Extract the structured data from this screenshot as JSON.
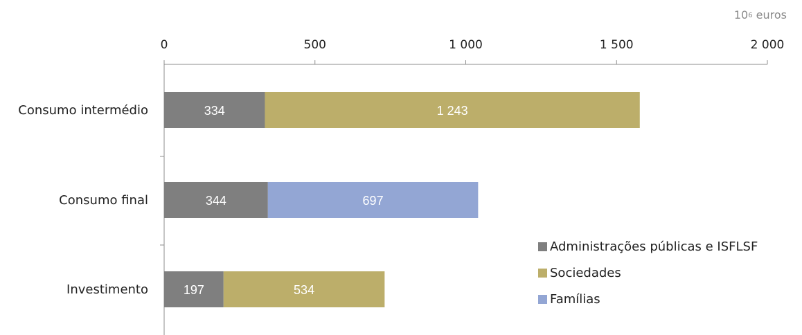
{
  "chart_data": {
    "type": "bar",
    "orientation": "horizontal",
    "stacked": true,
    "unit_base": "10",
    "unit_exp": "6",
    "unit_text": "euros",
    "categories": [
      "Consumo intermédio",
      "Consumo final",
      "Investimento"
    ],
    "xlim": [
      0,
      2000
    ],
    "xticks": [
      0,
      500,
      1000,
      1500,
      2000
    ],
    "xtick_labels": [
      "0",
      "500",
      "1 000",
      "1 500",
      "2 000"
    ],
    "grid": false,
    "legend_position": "bottom-right",
    "series": [
      {
        "name": "Administrações públicas e ISFLSF",
        "color": "#7f7f7f",
        "values": [
          334,
          344,
          197
        ],
        "labels": [
          "334",
          "344",
          "197"
        ]
      },
      {
        "name": "Sociedades",
        "color": "#bcae6a",
        "values": [
          1243,
          null,
          534
        ],
        "labels": [
          "1 243",
          "",
          "534"
        ]
      },
      {
        "name": "Famílias",
        "color": "#93a6d4",
        "values": [
          null,
          697,
          null
        ],
        "labels": [
          "",
          "697",
          ""
        ]
      }
    ]
  }
}
